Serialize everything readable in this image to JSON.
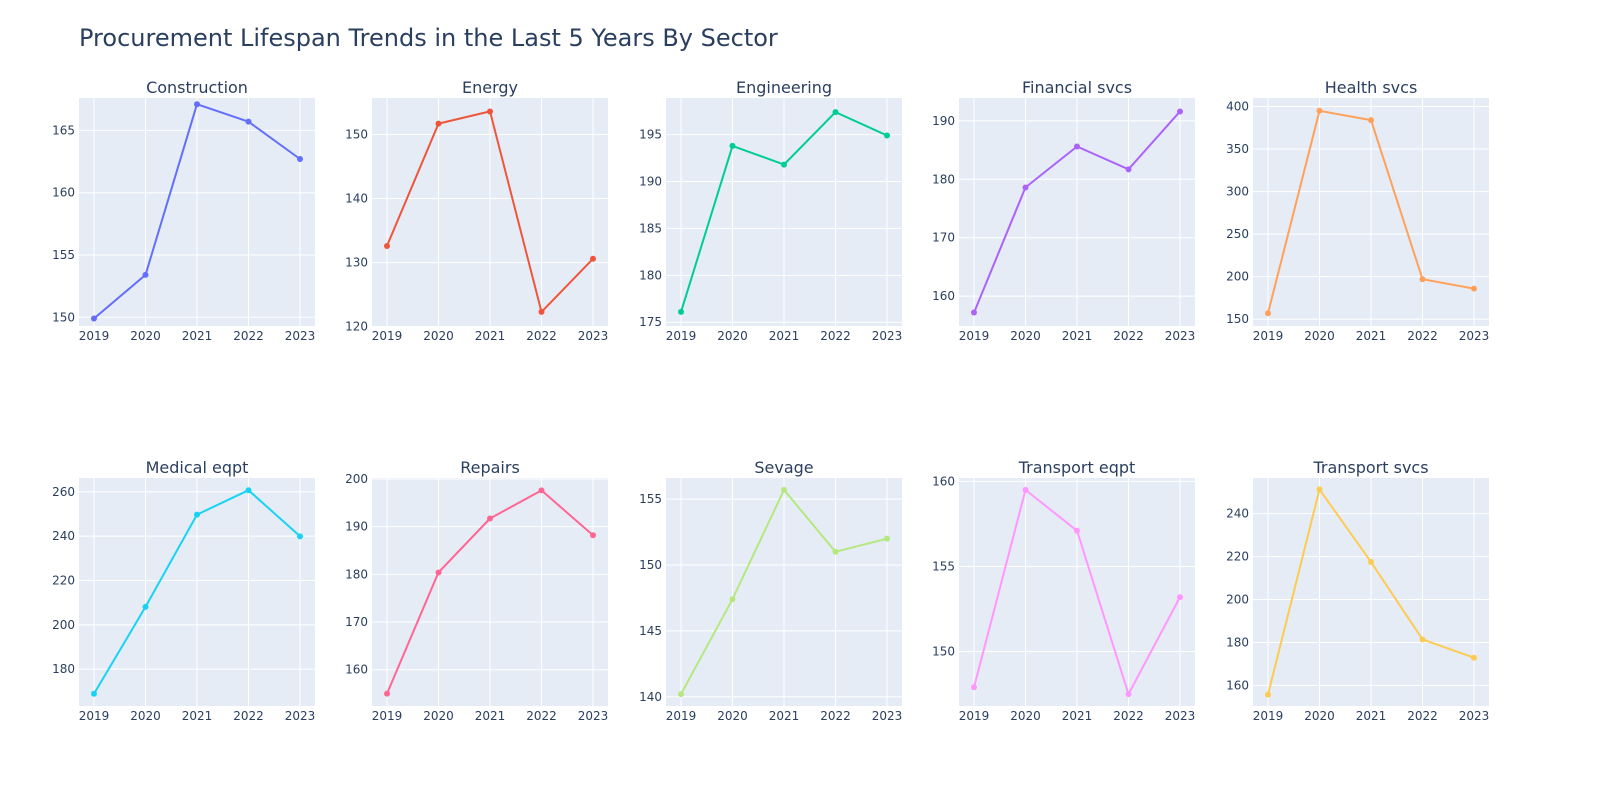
{
  "title": "Procurement Lifespan Trends in the Last 5 Years By Sector",
  "chart_data": [
    {
      "type": "line",
      "title": "Construction",
      "color": "#636efa",
      "x": [
        2019,
        2020,
        2021,
        2022,
        2023
      ],
      "y": [
        149.9,
        153.4,
        167.1,
        165.7,
        162.7
      ],
      "xlim": [
        2019,
        2023
      ],
      "ylim": [
        149.3,
        167.6
      ],
      "yticks": [
        150,
        155,
        160,
        165
      ],
      "xticks": [
        2019,
        2020,
        2021,
        2022,
        2023
      ]
    },
    {
      "type": "line",
      "title": "Energy",
      "color": "#ef553b",
      "x": [
        2019,
        2020,
        2021,
        2022,
        2023
      ],
      "y": [
        132.6,
        151.7,
        153.6,
        122.3,
        130.6
      ],
      "xlim": [
        2019,
        2023
      ],
      "ylim": [
        120.1,
        155.7
      ],
      "yticks": [
        120,
        130,
        140,
        150
      ],
      "xticks": [
        2019,
        2020,
        2021,
        2022,
        2023
      ]
    },
    {
      "type": "line",
      "title": "Engineering",
      "color": "#00cc96",
      "x": [
        2019,
        2020,
        2021,
        2022,
        2023
      ],
      "y": [
        176.1,
        193.8,
        191.8,
        197.4,
        194.9
      ],
      "xlim": [
        2019,
        2023
      ],
      "ylim": [
        174.6,
        198.9
      ],
      "yticks": [
        175,
        180,
        185,
        190,
        195
      ],
      "xticks": [
        2019,
        2020,
        2021,
        2022,
        2023
      ]
    },
    {
      "type": "line",
      "title": "Financial svcs",
      "color": "#ab63fa",
      "x": [
        2019,
        2020,
        2021,
        2022,
        2023
      ],
      "y": [
        157.2,
        178.6,
        185.6,
        181.7,
        191.6
      ],
      "xlim": [
        2019,
        2023
      ],
      "ylim": [
        154.9,
        193.9
      ],
      "yticks": [
        160,
        170,
        180,
        190
      ],
      "xticks": [
        2019,
        2020,
        2021,
        2022,
        2023
      ]
    },
    {
      "type": "line",
      "title": "Health svcs",
      "color": "#ffa15a",
      "x": [
        2019,
        2020,
        2021,
        2022,
        2023
      ],
      "y": [
        157,
        395,
        384,
        197,
        186
      ],
      "xlim": [
        2019,
        2023
      ],
      "ylim": [
        142,
        410
      ],
      "yticks": [
        150,
        200,
        250,
        300,
        350,
        400
      ],
      "xticks": [
        2019,
        2020,
        2021,
        2022,
        2023
      ]
    },
    {
      "type": "line",
      "title": "Medical eqpt",
      "color": "#19d3f3",
      "x": [
        2019,
        2020,
        2021,
        2022,
        2023
      ],
      "y": [
        168.9,
        208.1,
        249.7,
        260.7,
        239.9
      ],
      "xlim": [
        2019,
        2023
      ],
      "ylim": [
        163.4,
        266.2
      ],
      "yticks": [
        180,
        200,
        220,
        240,
        260
      ],
      "xticks": [
        2019,
        2020,
        2021,
        2022,
        2023
      ]
    },
    {
      "type": "line",
      "title": "Repairs",
      "color": "#ff6692",
      "x": [
        2019,
        2020,
        2021,
        2022,
        2023
      ],
      "y": [
        155,
        180.4,
        191.7,
        197.6,
        188.2
      ],
      "xlim": [
        2019,
        2023
      ],
      "ylim": [
        152.4,
        200.2
      ],
      "yticks": [
        160,
        170,
        180,
        190,
        200
      ],
      "xticks": [
        2019,
        2020,
        2021,
        2022,
        2023
      ]
    },
    {
      "type": "line",
      "title": "Sevage",
      "color": "#b6e880",
      "x": [
        2019,
        2020,
        2021,
        2022,
        2023
      ],
      "y": [
        140.2,
        147.4,
        155.7,
        151,
        152
      ],
      "xlim": [
        2019,
        2023
      ],
      "ylim": [
        139.3,
        156.6
      ],
      "yticks": [
        140,
        145,
        150,
        155
      ],
      "xticks": [
        2019,
        2020,
        2021,
        2022,
        2023
      ]
    },
    {
      "type": "line",
      "title": "Transport eqpt",
      "color": "#ff97ff",
      "x": [
        2019,
        2020,
        2021,
        2022,
        2023
      ],
      "y": [
        147.9,
        159.5,
        157.1,
        147.5,
        153.2
      ],
      "xlim": [
        2019,
        2023
      ],
      "ylim": [
        146.8,
        160.2
      ],
      "yticks": [
        150,
        155,
        160
      ],
      "xticks": [
        2019,
        2020,
        2021,
        2022,
        2023
      ]
    },
    {
      "type": "line",
      "title": "Transport svcs",
      "color": "#fecb52",
      "x": [
        2019,
        2020,
        2021,
        2022,
        2023
      ],
      "y": [
        155.7,
        251.3,
        217.5,
        181.4,
        172.9
      ],
      "xlim": [
        2019,
        2023
      ],
      "ylim": [
        150.4,
        256.6
      ],
      "yticks": [
        160,
        180,
        200,
        220,
        240
      ],
      "xticks": [
        2019,
        2020,
        2021,
        2022,
        2023
      ]
    }
  ]
}
